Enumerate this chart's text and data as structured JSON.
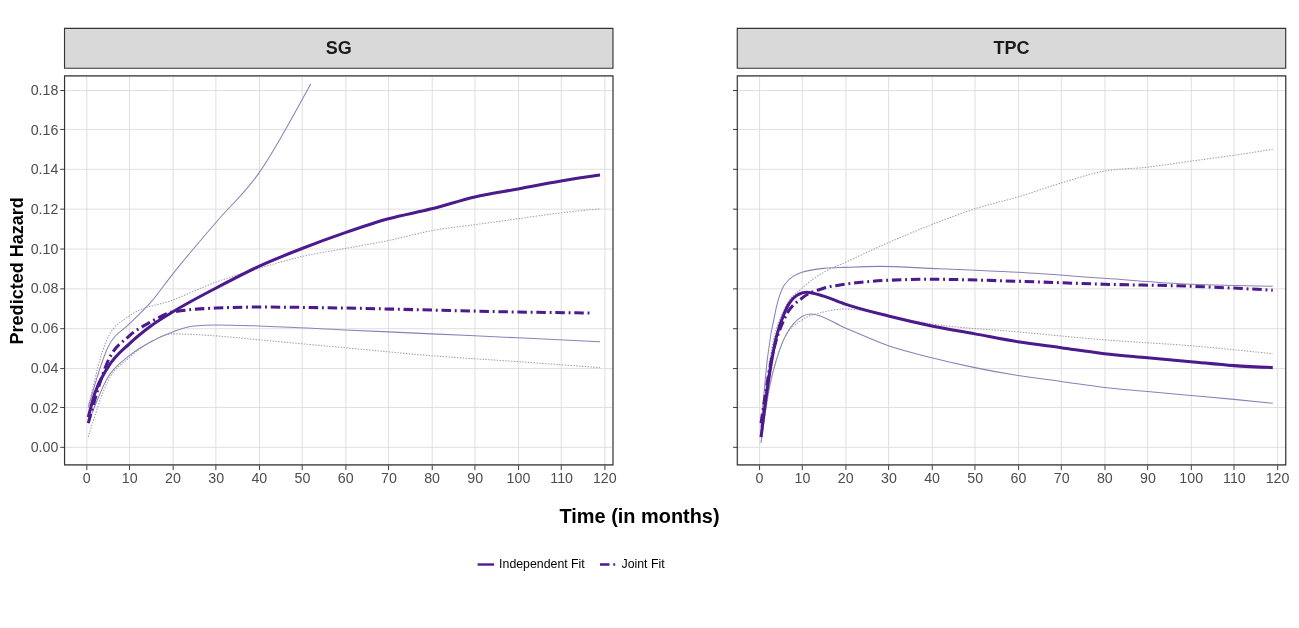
{
  "chart_data": [
    {
      "type": "line",
      "title": "SG",
      "xlabel": "Time (in months)",
      "ylabel": "Predicted Hazard",
      "legend": "bottom",
      "grid": true,
      "xlim": [
        -5,
        122
      ],
      "xticks": [
        0,
        10,
        20,
        30,
        40,
        50,
        60,
        70,
        80,
        90,
        100,
        110,
        120
      ],
      "ylim": [
        -0.009,
        0.187
      ],
      "yticks": [
        {
          "value": 0,
          "label": "0.00"
        },
        {
          "value": 0.02,
          "label": "0.02"
        },
        {
          "value": 0.04,
          "label": "0.04"
        },
        {
          "value": 0.06,
          "label": "0.06"
        },
        {
          "value": 0.08,
          "label": "0.08"
        },
        {
          "value": 0.1,
          "label": "0.10"
        },
        {
          "value": 0.12,
          "label": "0.12"
        },
        {
          "value": 0.14,
          "label": "0.14"
        },
        {
          "value": 0.16,
          "label": "0.16"
        },
        {
          "value": 0.18,
          "label": "0.18"
        }
      ],
      "series": [
        {
          "color": "#8a80b8",
          "line_style": "solid",
          "x": [
            0.5,
            5,
            10,
            15,
            20,
            30,
            40,
            50,
            52
          ],
          "values": [
            0.02,
            0.05,
            0.062,
            0.073,
            0.087,
            0.113,
            0.138,
            0.175,
            0.183
          ]
        },
        {
          "color": "#8a80b8",
          "line_style": "solid",
          "x": [
            0.5,
            5,
            10,
            15,
            20,
            25,
            30,
            40,
            60,
            80,
            100,
            119
          ],
          "values": [
            0.012,
            0.035,
            0.046,
            0.053,
            0.058,
            0.061,
            0.0615,
            0.061,
            0.059,
            0.057,
            0.055,
            0.053
          ]
        },
        {
          "color": "#a09ca8",
          "line_style": "dotted",
          "x": [
            0.5,
            5,
            10,
            20,
            30,
            40,
            50,
            60,
            70,
            80,
            90,
            100,
            110,
            119
          ],
          "values": [
            0.02,
            0.055,
            0.066,
            0.074,
            0.083,
            0.09,
            0.096,
            0.1,
            0.104,
            0.109,
            0.112,
            0.115,
            0.118,
            0.12
          ]
        },
        {
          "color": "#a09ca8",
          "line_style": "dotted",
          "x": [
            0.5,
            5,
            10,
            15,
            20,
            30,
            40,
            60,
            80,
            100,
            119
          ],
          "values": [
            0.005,
            0.033,
            0.045,
            0.053,
            0.057,
            0.056,
            0.054,
            0.05,
            0.046,
            0.043,
            0.04
          ]
        },
        {
          "name": "Independent Fit",
          "color": "#4b1a8c",
          "line_style": "solid",
          "x": [
            0.5,
            2,
            5,
            10,
            15,
            20,
            30,
            40,
            50,
            60,
            70,
            80,
            90,
            100,
            110,
            119
          ],
          "values": [
            0.015,
            0.027,
            0.04,
            0.052,
            0.061,
            0.068,
            0.08,
            0.091,
            0.1,
            0.108,
            0.115,
            0.12,
            0.126,
            0.13,
            0.134,
            0.137
          ]
        },
        {
          "name": "Joint Fit",
          "color": "#4b1a8c",
          "line_style": "dashed",
          "x": [
            0.5,
            5,
            10,
            15,
            20,
            30,
            40,
            60,
            80,
            100,
            117
          ],
          "values": [
            0.012,
            0.043,
            0.056,
            0.063,
            0.068,
            0.07,
            0.0705,
            0.07,
            0.069,
            0.068,
            0.0675
          ]
        }
      ]
    },
    {
      "type": "line",
      "title": "TPC",
      "grid": true,
      "legend": "bottom",
      "tick_labels": "x",
      "xlim": [
        -5,
        122
      ],
      "xticks": [
        0,
        10,
        20,
        30,
        40,
        50,
        60,
        70,
        80,
        90,
        100,
        110,
        120
      ],
      "ylim": [
        -0.009,
        0.187
      ],
      "yticks": [
        {
          "value": 0,
          "label": null
        },
        {
          "value": 0.02,
          "label": null
        },
        {
          "value": 0.04,
          "label": null
        },
        {
          "value": 0.06,
          "label": null
        },
        {
          "value": 0.08,
          "label": null
        },
        {
          "value": 0.1,
          "label": null
        },
        {
          "value": 0.12,
          "label": null
        },
        {
          "value": 0.14,
          "label": null
        },
        {
          "value": 0.16,
          "label": null
        },
        {
          "value": 0.18,
          "label": null
        }
      ],
      "series": [
        {
          "color": "#8a80b8",
          "line_style": "solid",
          "x": [
            0.5,
            2,
            4,
            6,
            10,
            15,
            20,
            28,
            40,
            60,
            80,
            100,
            119
          ],
          "values": [
            0.01,
            0.045,
            0.07,
            0.082,
            0.088,
            0.09,
            0.0905,
            0.091,
            0.09,
            0.088,
            0.085,
            0.082,
            0.081
          ]
        },
        {
          "color": "#8a80b8",
          "line_style": "solid",
          "x": [
            0.5,
            2,
            5,
            8,
            12,
            20,
            30,
            40,
            50,
            60,
            70,
            80,
            90,
            100,
            110,
            119
          ],
          "values": [
            0.002,
            0.025,
            0.05,
            0.062,
            0.067,
            0.06,
            0.051,
            0.045,
            0.04,
            0.036,
            0.033,
            0.03,
            0.028,
            0.026,
            0.024,
            0.022
          ]
        },
        {
          "color": "#a09ca8",
          "line_style": "dotted",
          "x": [
            0.5,
            3,
            6,
            10,
            15,
            20,
            30,
            40,
            50,
            60,
            70,
            80,
            90,
            100,
            110,
            119
          ],
          "values": [
            0.01,
            0.05,
            0.07,
            0.08,
            0.088,
            0.093,
            0.103,
            0.112,
            0.12,
            0.126,
            0.133,
            0.139,
            0.141,
            0.144,
            0.147,
            0.15
          ]
        },
        {
          "color": "#a09ca8",
          "line_style": "dotted",
          "x": [
            0.5,
            3,
            6,
            10,
            15,
            20,
            30,
            40,
            60,
            80,
            100,
            119
          ],
          "values": [
            0.003,
            0.035,
            0.055,
            0.064,
            0.068,
            0.0695,
            0.066,
            0.062,
            0.058,
            0.054,
            0.051,
            0.047
          ]
        },
        {
          "name": "Independent Fit",
          "color": "#4b1a8c",
          "line_style": "solid",
          "x": [
            0.5,
            2,
            4,
            6,
            8,
            11,
            15,
            20,
            30,
            40,
            50,
            60,
            70,
            80,
            90,
            100,
            110,
            119
          ],
          "values": [
            0.005,
            0.03,
            0.055,
            0.068,
            0.075,
            0.078,
            0.076,
            0.072,
            0.066,
            0.061,
            0.057,
            0.053,
            0.05,
            0.047,
            0.045,
            0.043,
            0.041,
            0.04
          ]
        },
        {
          "name": "Joint Fit",
          "color": "#4b1a8c",
          "line_style": "dashed",
          "x": [
            0.5,
            3,
            6,
            10,
            15,
            20,
            30,
            40,
            60,
            80,
            100,
            119
          ],
          "values": [
            0.012,
            0.045,
            0.065,
            0.075,
            0.08,
            0.082,
            0.084,
            0.0845,
            0.0835,
            0.082,
            0.081,
            0.079
          ]
        }
      ]
    }
  ]
}
